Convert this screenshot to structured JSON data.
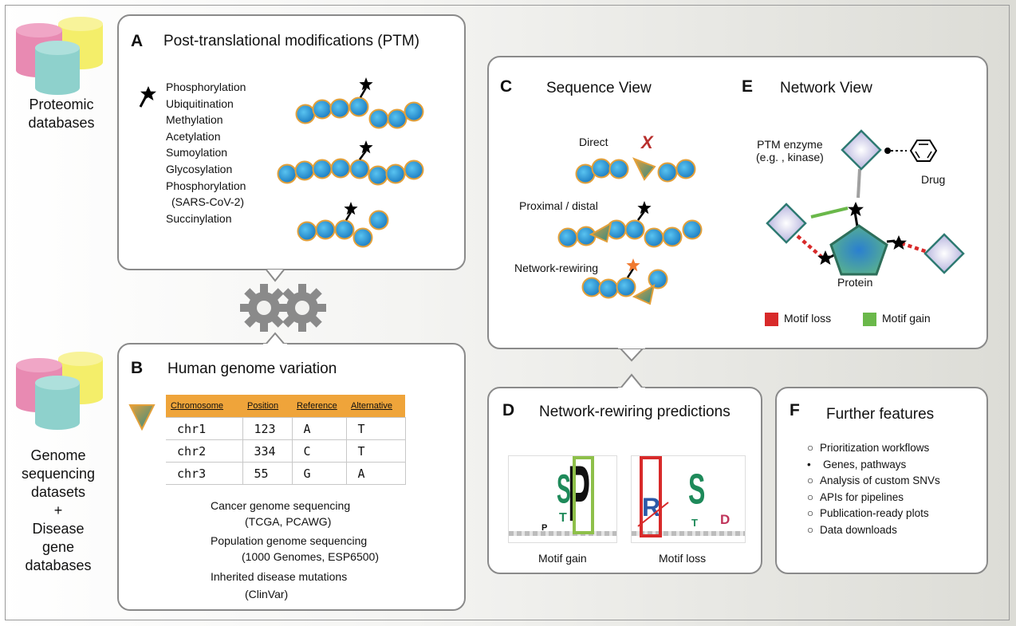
{
  "left_labels": {
    "proteomic": [
      "Proteomic",
      "databases"
    ],
    "genome": [
      "Genome",
      "sequencing",
      "datasets",
      "+",
      "Disease",
      "gene",
      "databases"
    ]
  },
  "panel_a": {
    "letter": "A",
    "title": "Post-translational modifications (PTM)",
    "ptm_types": [
      "Phosphorylation",
      "Ubiquitination",
      "Methylation",
      "Acetylation",
      "Sumoylation",
      "Glycosylation",
      "Phosphorylation",
      "(SARS-CoV-2)",
      "Succinylation"
    ]
  },
  "panel_b": {
    "letter": "B",
    "title": "Human genome variation",
    "table": {
      "headers": [
        "Chromosome",
        "Position",
        "Reference",
        "Alternative"
      ],
      "rows": [
        [
          "chr1",
          "123",
          "A",
          "T"
        ],
        [
          "chr2",
          "334",
          "C",
          "T"
        ],
        [
          "chr3",
          "55",
          "G",
          "A"
        ]
      ]
    },
    "sources": [
      "Cancer genome sequencing",
      "(TCGA, PCAWG)",
      "Population genome sequencing",
      "(1000 Genomes, ESP6500)",
      "Inherited disease mutations",
      "(ClinVar)"
    ]
  },
  "panel_c": {
    "letter": "C",
    "title": "Sequence View",
    "labels": [
      "Direct",
      "Proximal / distal",
      "Network-rewiring"
    ],
    "x_mark": "X"
  },
  "panel_e": {
    "letter": "E",
    "title": "Network View",
    "enzyme": [
      "PTM enzyme",
      "(e.g. , kinase)"
    ],
    "drug": "Drug",
    "protein": "Protein",
    "legend": [
      {
        "label": "Motif loss",
        "color": "#d82a2a"
      },
      {
        "label": "Motif gain",
        "color": "#6ab84a"
      }
    ]
  },
  "panel_d": {
    "letter": "D",
    "title": "Network-rewiring predictions",
    "captions": [
      "Motif gain",
      "Motif loss"
    ],
    "logo_gain": {
      "s": "S",
      "p": "P",
      "t": "T",
      "pl": "P"
    },
    "logo_loss": {
      "r": "R",
      "s": "S",
      "t": "T",
      "d": "D"
    }
  },
  "panel_f": {
    "letter": "F",
    "title": "Further features",
    "items": [
      {
        "marker": "○",
        "text": "Prioritization workflows"
      },
      {
        "marker": "•",
        "text": "Genes, pathways"
      },
      {
        "marker": "○",
        "text": "Analysis of custom SNVs"
      },
      {
        "marker": "○",
        "text": "APIs for pipelines"
      },
      {
        "marker": "○",
        "text": "Publication-ready plots"
      },
      {
        "marker": "○",
        "text": "Data downloads"
      }
    ]
  },
  "colors": {
    "residue": "#2e9fd8",
    "residue_stroke": "#e3a03a",
    "mutation": "#e3a03a",
    "db_pink": "#e88ab2",
    "db_yellow": "#f4ee6a",
    "db_teal": "#8ed1cc",
    "header_orange": "#efa43a",
    "gear": "#8a8a8a"
  }
}
